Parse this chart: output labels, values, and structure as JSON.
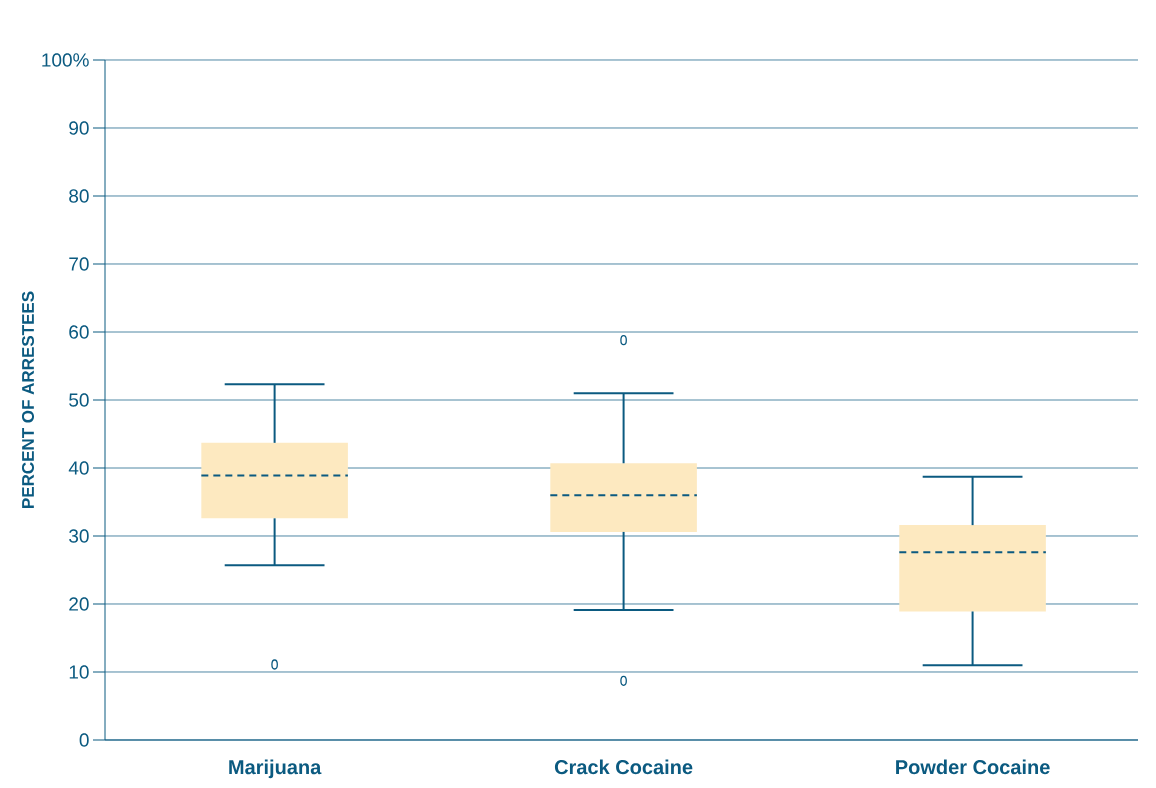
{
  "chart_data": {
    "type": "box",
    "ylabel": "PERCENT OF ARRESTEES",
    "categories": [
      "Marijuana",
      "Crack Cocaine",
      "Powder Cocaine"
    ],
    "boxes": [
      {
        "low": 25.7,
        "q1": 32.6,
        "median": 38.9,
        "q3": 43.7,
        "high": 52.3,
        "outliers": [
          11.1
        ]
      },
      {
        "low": 19.1,
        "q1": 30.6,
        "median": 36.0,
        "q3": 40.7,
        "high": 51.0,
        "outliers": [
          58.8,
          8.7
        ]
      },
      {
        "low": 11.0,
        "q1": 18.9,
        "median": 27.6,
        "q3": 31.6,
        "high": 38.7
      }
    ],
    "color": "#fde9c0",
    "ylim": [
      0,
      100
    ],
    "yticks": [
      0,
      10,
      20,
      30,
      40,
      50,
      60,
      70,
      80,
      90,
      {
        "value": 100,
        "label": "100%"
      }
    ],
    "grid": "y"
  }
}
